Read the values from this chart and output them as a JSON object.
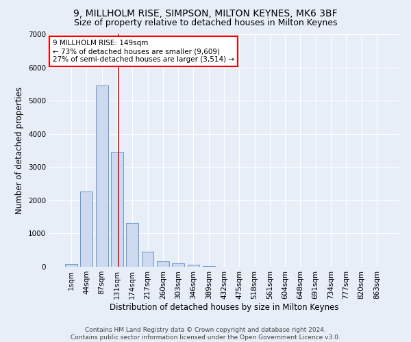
{
  "title_line1": "9, MILLHOLM RISE, SIMPSON, MILTON KEYNES, MK6 3BF",
  "title_line2": "Size of property relative to detached houses in Milton Keynes",
  "xlabel": "Distribution of detached houses by size in Milton Keynes",
  "ylabel": "Number of detached properties",
  "bar_color": "#cdd9ee",
  "bar_edge_color": "#6699cc",
  "categories": [
    "1sqm",
    "44sqm",
    "87sqm",
    "131sqm",
    "174sqm",
    "217sqm",
    "260sqm",
    "303sqm",
    "346sqm",
    "389sqm",
    "432sqm",
    "475sqm",
    "518sqm",
    "561sqm",
    "604sqm",
    "648sqm",
    "691sqm",
    "734sqm",
    "777sqm",
    "820sqm",
    "863sqm"
  ],
  "values": [
    75,
    2270,
    5450,
    3450,
    1320,
    460,
    155,
    95,
    60,
    30,
    0,
    0,
    0,
    0,
    0,
    0,
    0,
    0,
    0,
    0,
    0
  ],
  "ylim": [
    0,
    7000
  ],
  "yticks": [
    0,
    1000,
    2000,
    3000,
    4000,
    5000,
    6000,
    7000
  ],
  "vline_position": 3.08,
  "annotation_text": "9 MILLHOLM RISE: 149sqm\n← 73% of detached houses are smaller (9,609)\n27% of semi-detached houses are larger (3,514) →",
  "annotation_box_color": "white",
  "annotation_box_edge_color": "red",
  "vline_color": "red",
  "footer_line1": "Contains HM Land Registry data © Crown copyright and database right 2024.",
  "footer_line2": "Contains public sector information licensed under the Open Government Licence v3.0.",
  "background_color": "#e8eef8",
  "grid_color": "#ffffff",
  "title_fontsize": 10,
  "subtitle_fontsize": 9,
  "axis_label_fontsize": 8.5,
  "tick_fontsize": 7.5,
  "annotation_fontsize": 7.5,
  "footer_fontsize": 6.5
}
